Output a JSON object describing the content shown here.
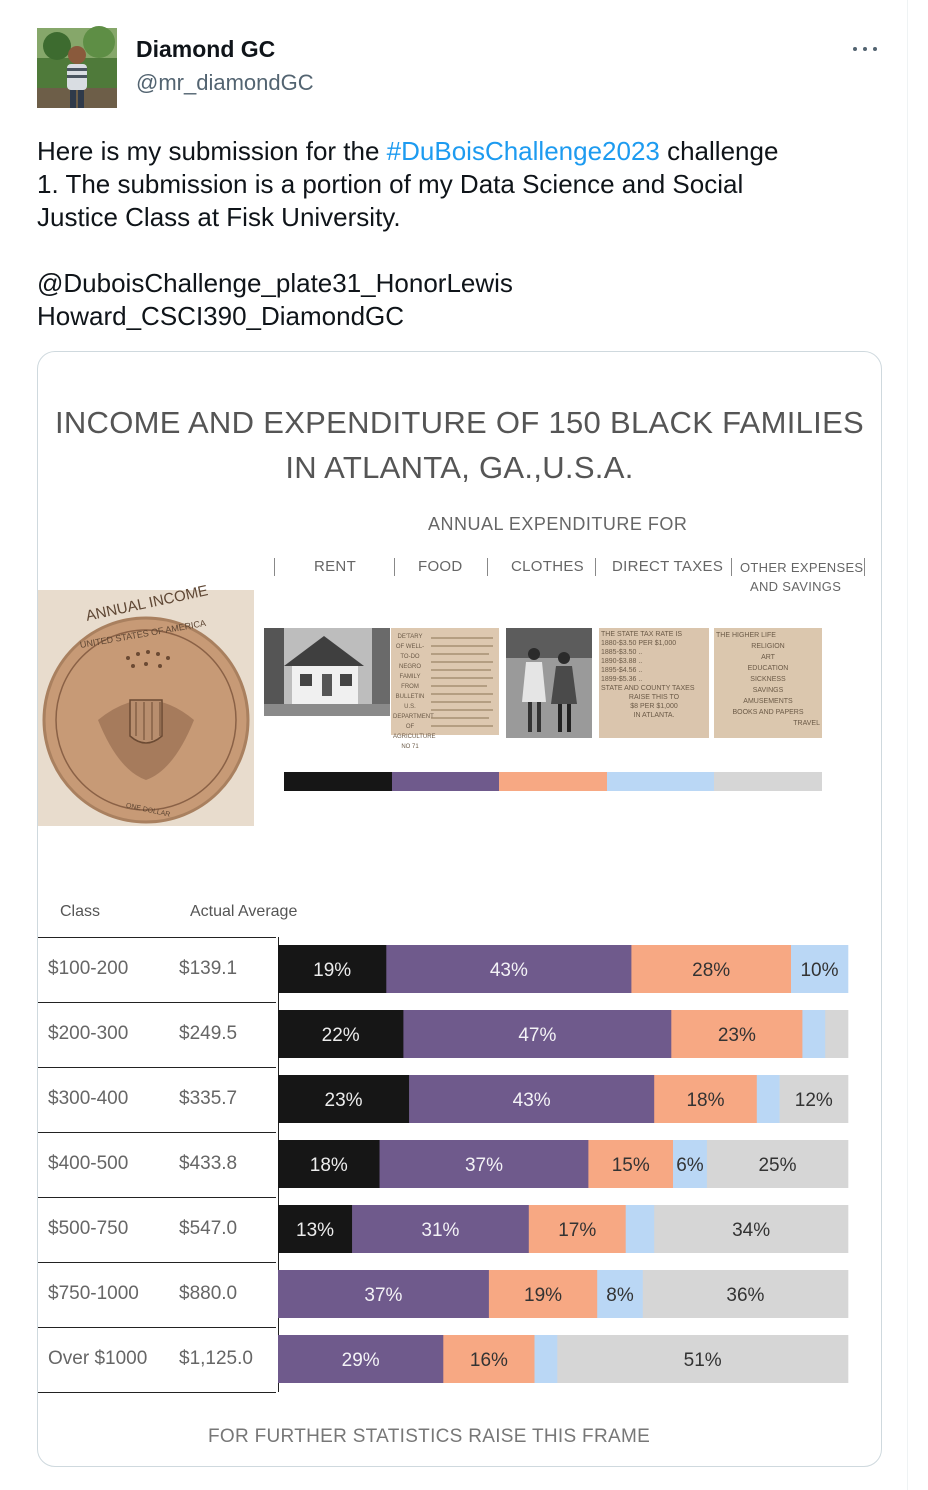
{
  "author": {
    "name": "Diamond GC",
    "handle": "@mr_diamondGC"
  },
  "tweet": {
    "line1_before": "Here is my submission for the ",
    "hashtag": "#DuBoisChallenge2023",
    "line1_after": " challenge",
    "line2": "1. The submission is a portion of my Data Science and Social",
    "line3": "Justice Class at Fisk University.",
    "line4": "@DuboisChallenge_plate31_HonorLewis",
    "line5": "Howard_CSCI390_DiamondGC"
  },
  "chart": {
    "title_line1": "INCOME AND EXPENDITURE OF 150 BLACK FAMILIES",
    "title_line2": "IN ATLANTA, GA.,U.S.A.",
    "subtitle": "ANNUAL EXPENDITURE FOR",
    "categories": [
      "RENT",
      "FOOD",
      "CLOTHES",
      "DIRECT TAXES",
      "OTHER EXPENSES",
      "AND SAVINGS"
    ],
    "coin_text": "ANNUAL INCOME",
    "coin_ring": "UNITED STATES OF AMERICA",
    "coin_bottom": "ONE DOLLAR",
    "doc_text": "DE'TARY OF WELL-TO-DO NEGRO FAMILY FROM BULLETIN U.S. DEPARTMENT OF AGRICULTURE NO 71",
    "tax_lines": [
      "THE STATE TAX RATE IS",
      "1880-$3.50 PER $1,000",
      "1885-$3.50 ..",
      "1890-$3.88 ..",
      "1895-$4.56 ..",
      "1899-$5.36 ..",
      "STATE AND COUNTY TAXES",
      "RAISE THIS TO",
      "$8 PER $1,000",
      "IN ATLANTA."
    ],
    "higher_lines": [
      "THE HIGHER LIFE",
      "RELIGION",
      "ART",
      "EDUCATION",
      "SICKNESS",
      "SAVINGS",
      "AMUSEMENTS",
      "BOOKS AND PAPERS",
      "TRAVEL"
    ],
    "col_class": "Class",
    "col_avg": "Actual Average",
    "footer": "FOR FURTHER STATISTICS RAISE THIS FRAME"
  },
  "chart_data": {
    "type": "bar",
    "orientation": "horizontal-stacked-100",
    "series_names": [
      "RENT",
      "FOOD",
      "CLOTHES",
      "DIRECT TAXES",
      "OTHER EXPENSES AND SAVINGS"
    ],
    "colors": [
      "#161616",
      "#6f5a8c",
      "#f7a883",
      "#bad7f5",
      "#d6d6d6"
    ],
    "rows": [
      {
        "class": "$100-200",
        "average": "$139.1",
        "values": [
          19,
          43,
          28,
          10,
          0
        ],
        "labels": [
          "19%",
          "43%",
          "28%",
          "10%",
          ""
        ]
      },
      {
        "class": "$200-300",
        "average": "$249.5",
        "values": [
          22,
          47,
          23,
          4,
          4
        ],
        "labels": [
          "22%",
          "47%",
          "23%",
          "",
          ""
        ]
      },
      {
        "class": "$300-400",
        "average": "$335.7",
        "values": [
          23,
          43,
          18,
          4,
          12
        ],
        "labels": [
          "23%",
          "43%",
          "18%",
          "",
          "12%"
        ]
      },
      {
        "class": "$400-500",
        "average": "$433.8",
        "values": [
          18,
          37,
          15,
          6,
          25
        ],
        "labels": [
          "18%",
          "37%",
          "15%",
          "6%",
          "25%"
        ]
      },
      {
        "class": "$500-750",
        "average": "$547.0",
        "values": [
          13,
          31,
          17,
          5,
          34
        ],
        "labels": [
          "13%",
          "31%",
          "17%",
          "",
          "34%"
        ]
      },
      {
        "class": "$750-1000",
        "average": "$880.0",
        "values": [
          0,
          37,
          19,
          8,
          36
        ],
        "labels": [
          "",
          "37%",
          "19%",
          "8%",
          "36%"
        ]
      },
      {
        "class": "Over $1000",
        "average": "$1,125.0",
        "values": [
          0,
          29,
          16,
          4,
          51
        ],
        "labels": [
          "",
          "29%",
          "16%",
          "",
          "51%"
        ]
      }
    ]
  }
}
